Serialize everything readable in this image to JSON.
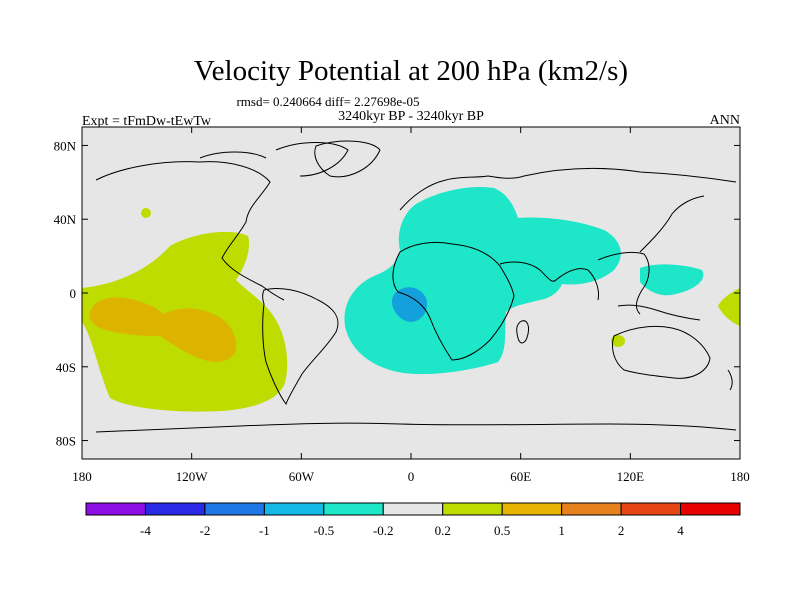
{
  "title": "Velocity Potential at 200 hPa (km2/s)",
  "stats": "rmsd= 0.240664 diff= 2.27698e-05",
  "period": "3240kyr BP - 3240kyr BP",
  "experiment": "Expt = tFmDw-tEwTw",
  "season": "ANN",
  "map": {
    "projection": "cylindrical equidistant",
    "lon_range": [
      -180,
      180
    ],
    "lat_range": [
      -90,
      90
    ],
    "lon_ticks": [
      {
        "value": -180,
        "label": "180"
      },
      {
        "value": -120,
        "label": "120W"
      },
      {
        "value": -60,
        "label": "60W"
      },
      {
        "value": 0,
        "label": "0"
      },
      {
        "value": 60,
        "label": "60E"
      },
      {
        "value": 120,
        "label": "120E"
      },
      {
        "value": 180,
        "label": "180"
      }
    ],
    "lat_ticks": [
      {
        "value": 80,
        "label": "80N"
      },
      {
        "value": 40,
        "label": "40N"
      },
      {
        "value": 0,
        "label": "0"
      },
      {
        "value": -40,
        "label": "40S"
      },
      {
        "value": -80,
        "label": "80S"
      }
    ]
  },
  "colorbar": {
    "colors": [
      "#8e0ee6",
      "#2a2ae6",
      "#1f78e6",
      "#14b9e6",
      "#1ee6c8",
      "#e6e6e6",
      "#bedc00",
      "#e6b400",
      "#e6821e",
      "#e64614",
      "#e60000"
    ],
    "labels": [
      "-4",
      "-2",
      "-1",
      "-0.5",
      "-0.2",
      "0.2",
      "0.5",
      "1",
      "2",
      "4"
    ]
  },
  "colors": {
    "background": "#e6e6e6",
    "positive_weak": "#bedc00",
    "positive_mid": "#dcb400",
    "negative_weak": "#1ee6c8",
    "negative_mid": "#14a0dc",
    "coast": "#000000"
  }
}
